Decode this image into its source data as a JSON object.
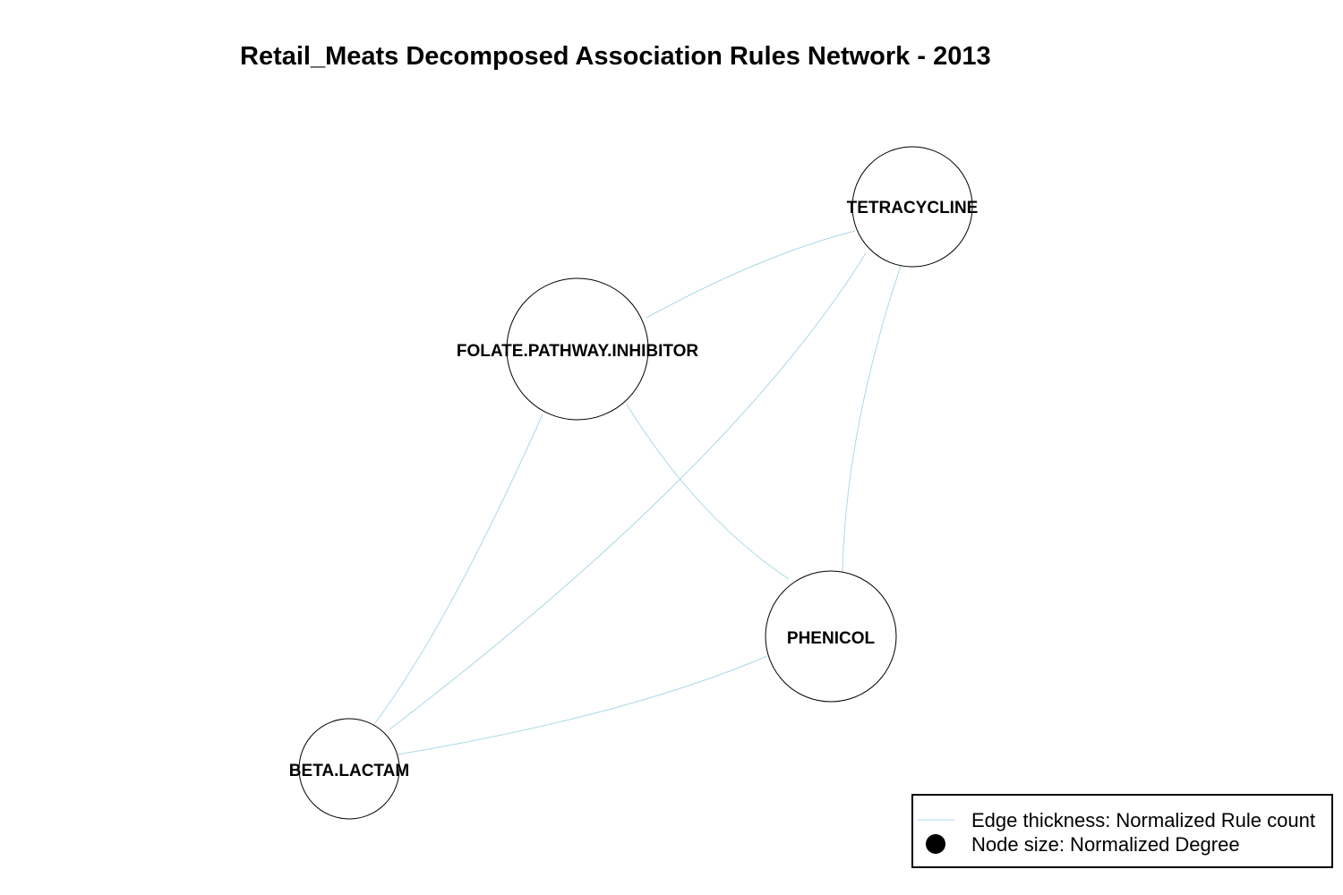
{
  "title": "Retail_Meats Decomposed Association Rules Network - 2013",
  "edge_color": "#add8e6",
  "nodes": [
    {
      "id": "tetracycline",
      "label": "TETRACYCLINE"
    },
    {
      "id": "folate",
      "label": "FOLATE.PATHWAY.INHIBITOR"
    },
    {
      "id": "phenicol",
      "label": "PHENICOL"
    },
    {
      "id": "beta",
      "label": "BETA.LACTAM"
    }
  ],
  "edges": [
    {
      "from": "folate",
      "to": "tetracycline"
    },
    {
      "from": "beta",
      "to": "tetracycline"
    },
    {
      "from": "tetracycline",
      "to": "phenicol"
    },
    {
      "from": "folate",
      "to": "phenicol"
    },
    {
      "from": "folate",
      "to": "beta"
    },
    {
      "from": "beta",
      "to": "phenicol"
    }
  ],
  "legend": {
    "edge_text": "Edge thickness: Normalized Rule count",
    "node_text": "Node size: Normalized Degree"
  }
}
